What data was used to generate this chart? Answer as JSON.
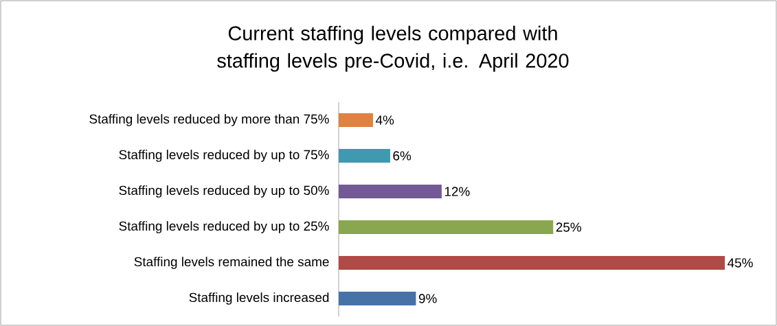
{
  "chart_data": {
    "type": "bar",
    "orientation": "horizontal",
    "title": "Current staffing levels compared with staffing levels pre-Covid, i.e. April 2020",
    "categories": [
      "Staffing levels reduced by more than 75%",
      "Staffing levels reduced by up to 75%",
      "Staffing levels reduced by up to 50%",
      "Staffing levels reduced by up to 25%",
      "Staffing levels remained the same",
      "Staffing levels increased"
    ],
    "values": [
      4,
      6,
      12,
      25,
      45,
      9
    ],
    "value_labels": [
      "4%",
      "6%",
      "12%",
      "25%",
      "45%",
      "9%"
    ],
    "colors": [
      "#e0813f",
      "#3f9ab0",
      "#735a96",
      "#89a74e",
      "#b04a47",
      "#4672a8"
    ]
  }
}
